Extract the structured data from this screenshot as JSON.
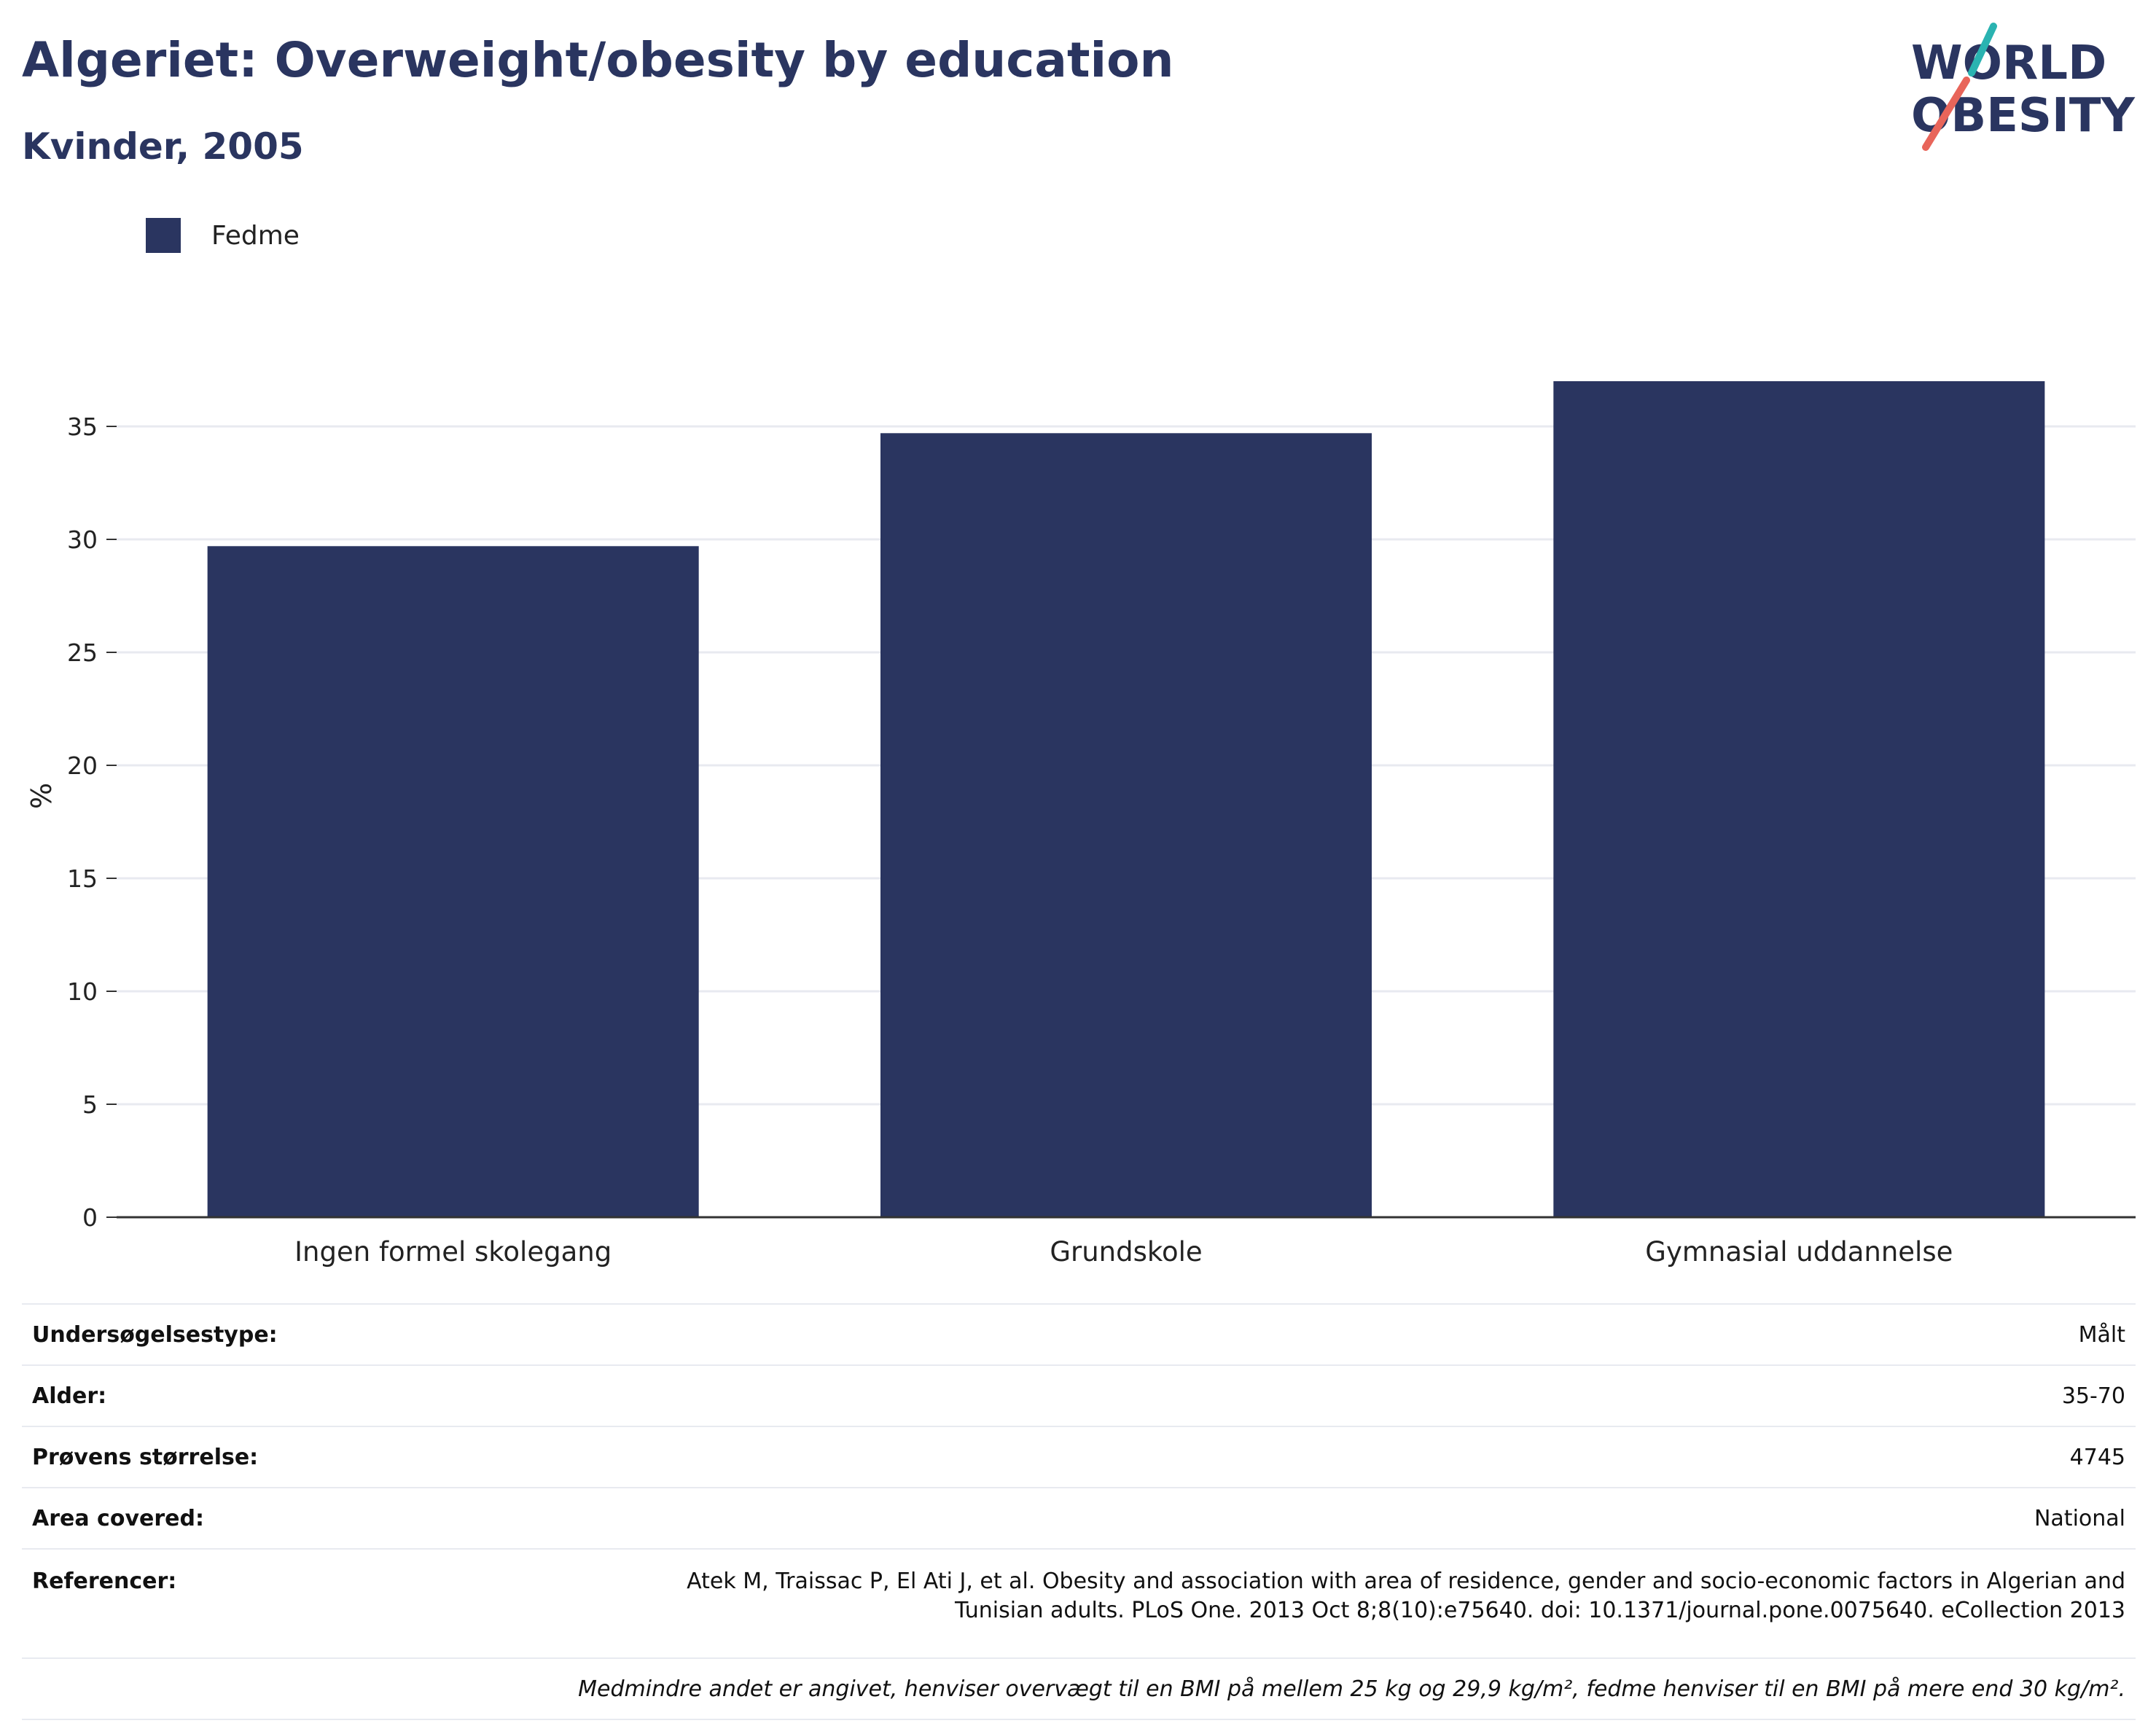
{
  "header": {
    "title": "Algeriet: Overweight/obesity by education",
    "subtitle": "Kvinder, 2005"
  },
  "logo": {
    "line1": "WORLD",
    "line2": "OBESITY",
    "accent_teal": "#2ab3b1",
    "accent_red": "#e8655a"
  },
  "colors": {
    "bar": "#2a3560",
    "grid": "#e8eaf0",
    "axis": "#333333"
  },
  "chart_data": {
    "type": "bar",
    "categories": [
      "Ingen formel skolegang",
      "Grundskole",
      "Gymnasial uddannelse"
    ],
    "series": [
      {
        "name": "Fedme",
        "values": [
          29.7,
          34.7,
          37.0
        ]
      }
    ],
    "ylabel": "%",
    "ylim": [
      0,
      40
    ],
    "yticks": [
      0,
      5,
      10,
      15,
      20,
      25,
      30,
      35
    ],
    "grid": true,
    "legend": "top-left"
  },
  "meta": {
    "rows": [
      {
        "key": "Undersøgelsestype:",
        "value": "Målt"
      },
      {
        "key": "Alder:",
        "value": "35-70"
      },
      {
        "key": "Prøvens størrelse:",
        "value": "4745"
      },
      {
        "key": "Area covered:",
        "value": "National"
      }
    ],
    "references_key": "Referencer:",
    "references_line1": "Atek M, Traissac P, El Ati J, et al. Obesity and association with area of residence, gender and socio-economic factors in Algerian and",
    "references_line2": "Tunisian adults. PLoS One. 2013 Oct 8;8(10):e75640. doi: 10.1371/journal.pone.0075640. eCollection 2013",
    "note": "Medmindre andet er angivet, henviser overvægt til en BMI på mellem 25 kg og 29,9 kg/m², fedme henviser til en BMI på mere end 30 kg/m²."
  }
}
